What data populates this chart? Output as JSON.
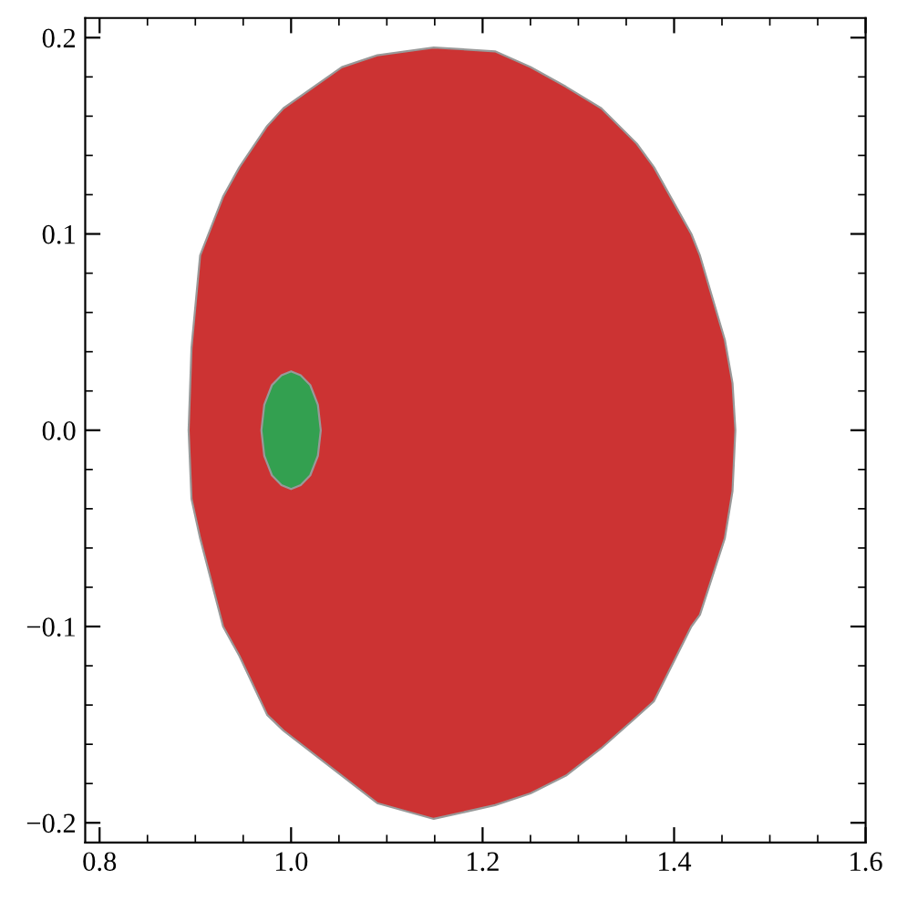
{
  "chart_data": {
    "type": "area",
    "xlim": [
      0.785,
      1.6
    ],
    "ylim": [
      -0.21,
      0.21
    ],
    "xticks": [
      0.8,
      {
        "value": 1.0,
        "label": "1.0"
      },
      1.2,
      1.4,
      1.6
    ],
    "yticks": [
      {
        "value": -0.2,
        "label": "−0.2"
      },
      {
        "value": -0.1,
        "label": "−0.1"
      },
      {
        "value": 0.0,
        "label": "0.0"
      },
      0.1,
      0.2
    ],
    "grid": false,
    "legend": false,
    "series": [
      {
        "color": "#cc3333",
        "x": [
          0.893,
          0.896,
          0.905,
          0.929,
          0.946,
          0.975,
          0.992,
          1.053,
          1.09,
          1.149,
          1.213,
          1.25,
          1.287,
          1.324,
          1.361,
          1.379,
          1.418,
          1.427,
          1.453,
          1.461,
          1.464,
          1.461,
          1.453,
          1.427,
          1.418,
          1.379,
          1.361,
          1.324,
          1.287,
          1.25,
          1.213,
          1.149,
          1.09,
          1.053,
          0.992,
          0.975,
          0.946,
          0.929,
          0.905,
          0.896
        ],
        "values": [
          0,
          0.042,
          0.089,
          0.119,
          0.134,
          0.155,
          0.164,
          0.185,
          0.191,
          0.195,
          0.193,
          0.185,
          0.175,
          0.164,
          0.146,
          0.134,
          0.1,
          0.089,
          0.046,
          0.024,
          0,
          -0.031,
          -0.055,
          -0.094,
          -0.1,
          -0.138,
          -0.146,
          -0.162,
          -0.176,
          -0.185,
          -0.191,
          -0.198,
          -0.19,
          -0.176,
          -0.153,
          -0.145,
          -0.115,
          -0.1,
          -0.055,
          -0.035
        ]
      },
      {
        "color": "#33a050",
        "x": [
          0.969,
          0.972,
          0.98,
          0.99,
          1.0,
          1.01,
          1.02,
          1.028,
          1.031,
          1.028,
          1.02,
          1.01,
          1.0,
          0.99,
          0.98,
          0.972
        ],
        "values": [
          0,
          0.013,
          0.023,
          0.028,
          0.03,
          0.028,
          0.023,
          0.013,
          0,
          -0.013,
          -0.023,
          -0.028,
          -0.03,
          -0.028,
          -0.023,
          -0.013
        ]
      }
    ]
  }
}
